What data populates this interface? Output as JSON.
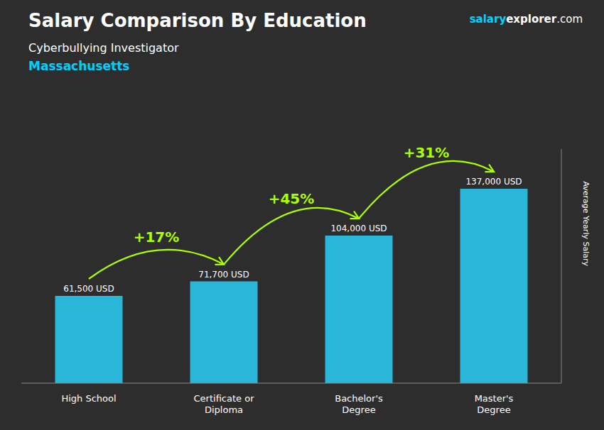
{
  "chart_data": {
    "type": "bar",
    "title": "Salary Comparison By Education",
    "subtitle": [
      {
        "text": "Cyberbullying Investigator",
        "color": "#ffffff"
      },
      {
        "text": "Massachusetts",
        "color": "#00cfff"
      }
    ],
    "watermark": [
      {
        "text": "salary",
        "color": "#00d4ff"
      },
      {
        "text": "explorer",
        "color": "#ffffff"
      },
      {
        "text": ".com",
        "color": "#ffffff"
      }
    ],
    "ylabel": "Average Yearly Salary",
    "categories": [
      "High School",
      "Certificate or\nDiploma",
      "Bachelor's\nDegree",
      "Master's\nDegree"
    ],
    "values": [
      61500,
      71700,
      104000,
      137000
    ],
    "value_labels": [
      "61,500 USD",
      "71,700 USD",
      "104,000 USD",
      "137,000 USD"
    ],
    "data_labels": true,
    "color": "#29b6d8",
    "ylim": [
      0,
      165000
    ],
    "tick_labels": "x",
    "grid": false,
    "annotations": [
      {
        "text": "+17%",
        "color": "#aaff00"
      },
      {
        "text": "+45%",
        "color": "#aaff00"
      },
      {
        "text": "+31%",
        "color": "#aaff00"
      }
    ]
  }
}
